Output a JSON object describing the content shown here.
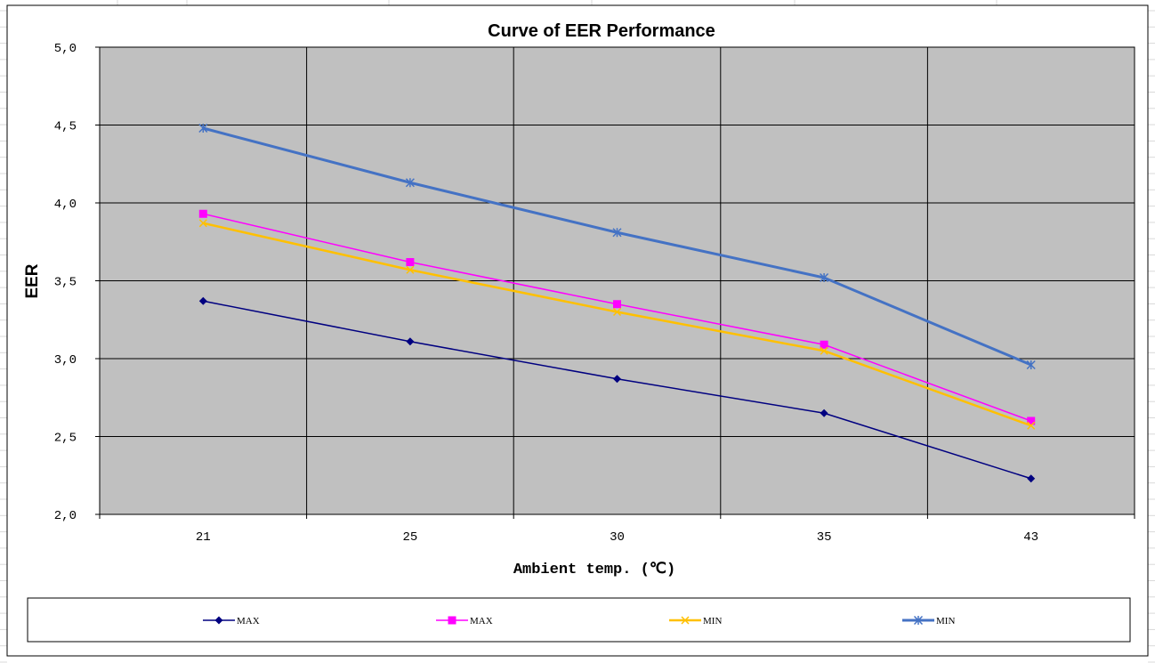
{
  "chart_data": {
    "type": "line",
    "title": "Curve of EER Performance",
    "xlabel": "Ambient temp. (℃)",
    "ylabel": "EER",
    "categories": [
      "21",
      "25",
      "30",
      "35",
      "43"
    ],
    "y_ticks": [
      "2,0",
      "2,5",
      "3,0",
      "3,5",
      "4,0",
      "4,5",
      "5,0"
    ],
    "ylim": [
      2.0,
      5.0
    ],
    "grid": true,
    "plot_background": "#c0c0c0",
    "legend_position": "bottom",
    "series": [
      {
        "name": "MAX",
        "color": "#000080",
        "marker": "diamond",
        "values": [
          3.37,
          3.11,
          2.87,
          2.65,
          2.23
        ]
      },
      {
        "name": "MAX",
        "color": "#ff00ff",
        "marker": "square",
        "values": [
          3.93,
          3.62,
          3.35,
          3.09,
          2.6
        ]
      },
      {
        "name": "MIN",
        "color": "#ffc000",
        "marker": "x",
        "values": [
          3.87,
          3.57,
          3.3,
          3.05,
          2.57
        ]
      },
      {
        "name": "MIN",
        "color": "#4472c4",
        "marker": "star",
        "values": [
          4.48,
          4.13,
          3.81,
          3.52,
          2.96
        ]
      }
    ]
  }
}
